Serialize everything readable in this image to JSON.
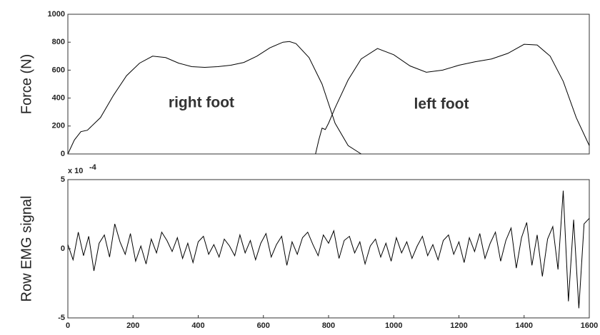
{
  "chart_data": [
    {
      "type": "line",
      "ylabel": "Force (N)",
      "annotations": [
        "right foot",
        "left foot"
      ],
      "xlim": [
        0,
        1600
      ],
      "ylim": [
        0,
        1000
      ],
      "yticks": [
        0,
        200,
        400,
        600,
        800,
        1000
      ],
      "series": [
        {
          "name": "right foot",
          "color": "#000000",
          "x": [
            0,
            20,
            40,
            60,
            100,
            140,
            180,
            220,
            260,
            300,
            340,
            380,
            420,
            460,
            500,
            540,
            580,
            620,
            660,
            680,
            700,
            740,
            780,
            820,
            860,
            900
          ],
          "values": [
            0,
            100,
            160,
            170,
            260,
            420,
            560,
            650,
            700,
            690,
            650,
            625,
            620,
            625,
            635,
            655,
            700,
            760,
            800,
            805,
            790,
            690,
            500,
            220,
            60,
            0
          ]
        },
        {
          "name": "left foot",
          "color": "#000000",
          "x": [
            760,
            770,
            780,
            790,
            800,
            820,
            860,
            900,
            950,
            1000,
            1050,
            1100,
            1150,
            1200,
            1250,
            1300,
            1350,
            1400,
            1440,
            1480,
            1520,
            1560,
            1600
          ],
          "values": [
            0,
            100,
            185,
            175,
            220,
            330,
            530,
            680,
            755,
            710,
            630,
            585,
            600,
            635,
            660,
            680,
            720,
            785,
            780,
            700,
            520,
            260,
            60
          ]
        }
      ]
    },
    {
      "type": "line",
      "ylabel": "Row EMG signal",
      "multiplier": "x 10",
      "multiplier_exp": "-4",
      "xlim": [
        0,
        1600
      ],
      "ylim": [
        -5,
        5
      ],
      "yticks": [
        -5,
        0,
        5
      ],
      "xticks": [
        0,
        200,
        400,
        600,
        800,
        1000,
        1200,
        1400,
        1600
      ],
      "series": [
        {
          "name": "EMG",
          "color": "#000000",
          "x": [
            0,
            16,
            32,
            48,
            64,
            80,
            96,
            112,
            128,
            144,
            160,
            176,
            192,
            208,
            224,
            240,
            256,
            272,
            288,
            304,
            320,
            336,
            352,
            368,
            384,
            400,
            416,
            432,
            448,
            464,
            480,
            496,
            512,
            528,
            544,
            560,
            576,
            592,
            608,
            624,
            640,
            656,
            672,
            688,
            704,
            720,
            736,
            752,
            768,
            784,
            800,
            816,
            832,
            848,
            864,
            880,
            896,
            912,
            928,
            944,
            960,
            976,
            992,
            1008,
            1024,
            1040,
            1056,
            1072,
            1088,
            1104,
            1120,
            1136,
            1152,
            1168,
            1184,
            1200,
            1216,
            1232,
            1248,
            1264,
            1280,
            1296,
            1312,
            1328,
            1344,
            1360,
            1376,
            1392,
            1408,
            1424,
            1440,
            1456,
            1472,
            1488,
            1504,
            1520,
            1536,
            1552,
            1568,
            1584,
            1600
          ],
          "values": [
            0.3,
            -0.8,
            1.2,
            -0.5,
            0.9,
            -1.6,
            0.4,
            1.0,
            -0.6,
            1.8,
            0.5,
            -0.4,
            1.1,
            -0.9,
            0.2,
            -1.1,
            0.7,
            -0.3,
            1.2,
            0.6,
            -0.2,
            0.8,
            -0.7,
            0.4,
            -1.0,
            0.5,
            0.9,
            -0.4,
            0.3,
            -0.6,
            0.7,
            0.2,
            -0.5,
            1.0,
            -0.3,
            0.6,
            -0.8,
            0.4,
            1.1,
            -0.6,
            0.3,
            0.9,
            -1.2,
            0.5,
            -0.4,
            0.8,
            1.2,
            0.3,
            -0.5,
            1.0,
            0.4,
            1.3,
            -0.7,
            0.6,
            0.9,
            -0.3,
            0.5,
            -1.1,
            0.2,
            0.7,
            -0.6,
            0.4,
            -0.9,
            0.8,
            -0.3,
            0.5,
            -0.7,
            0.2,
            0.9,
            -0.5,
            0.3,
            -0.8,
            0.6,
            1.0,
            -0.4,
            0.5,
            -1.0,
            0.8,
            -0.2,
            1.1,
            -0.7,
            0.4,
            1.2,
            -0.9,
            0.6,
            1.5,
            -1.4,
            0.8,
            1.9,
            -1.2,
            1.0,
            -2.0,
            0.7,
            1.6,
            -1.5,
            4.2,
            -3.8,
            2.1,
            -4.3,
            1.8,
            2.2
          ]
        }
      ]
    }
  ]
}
